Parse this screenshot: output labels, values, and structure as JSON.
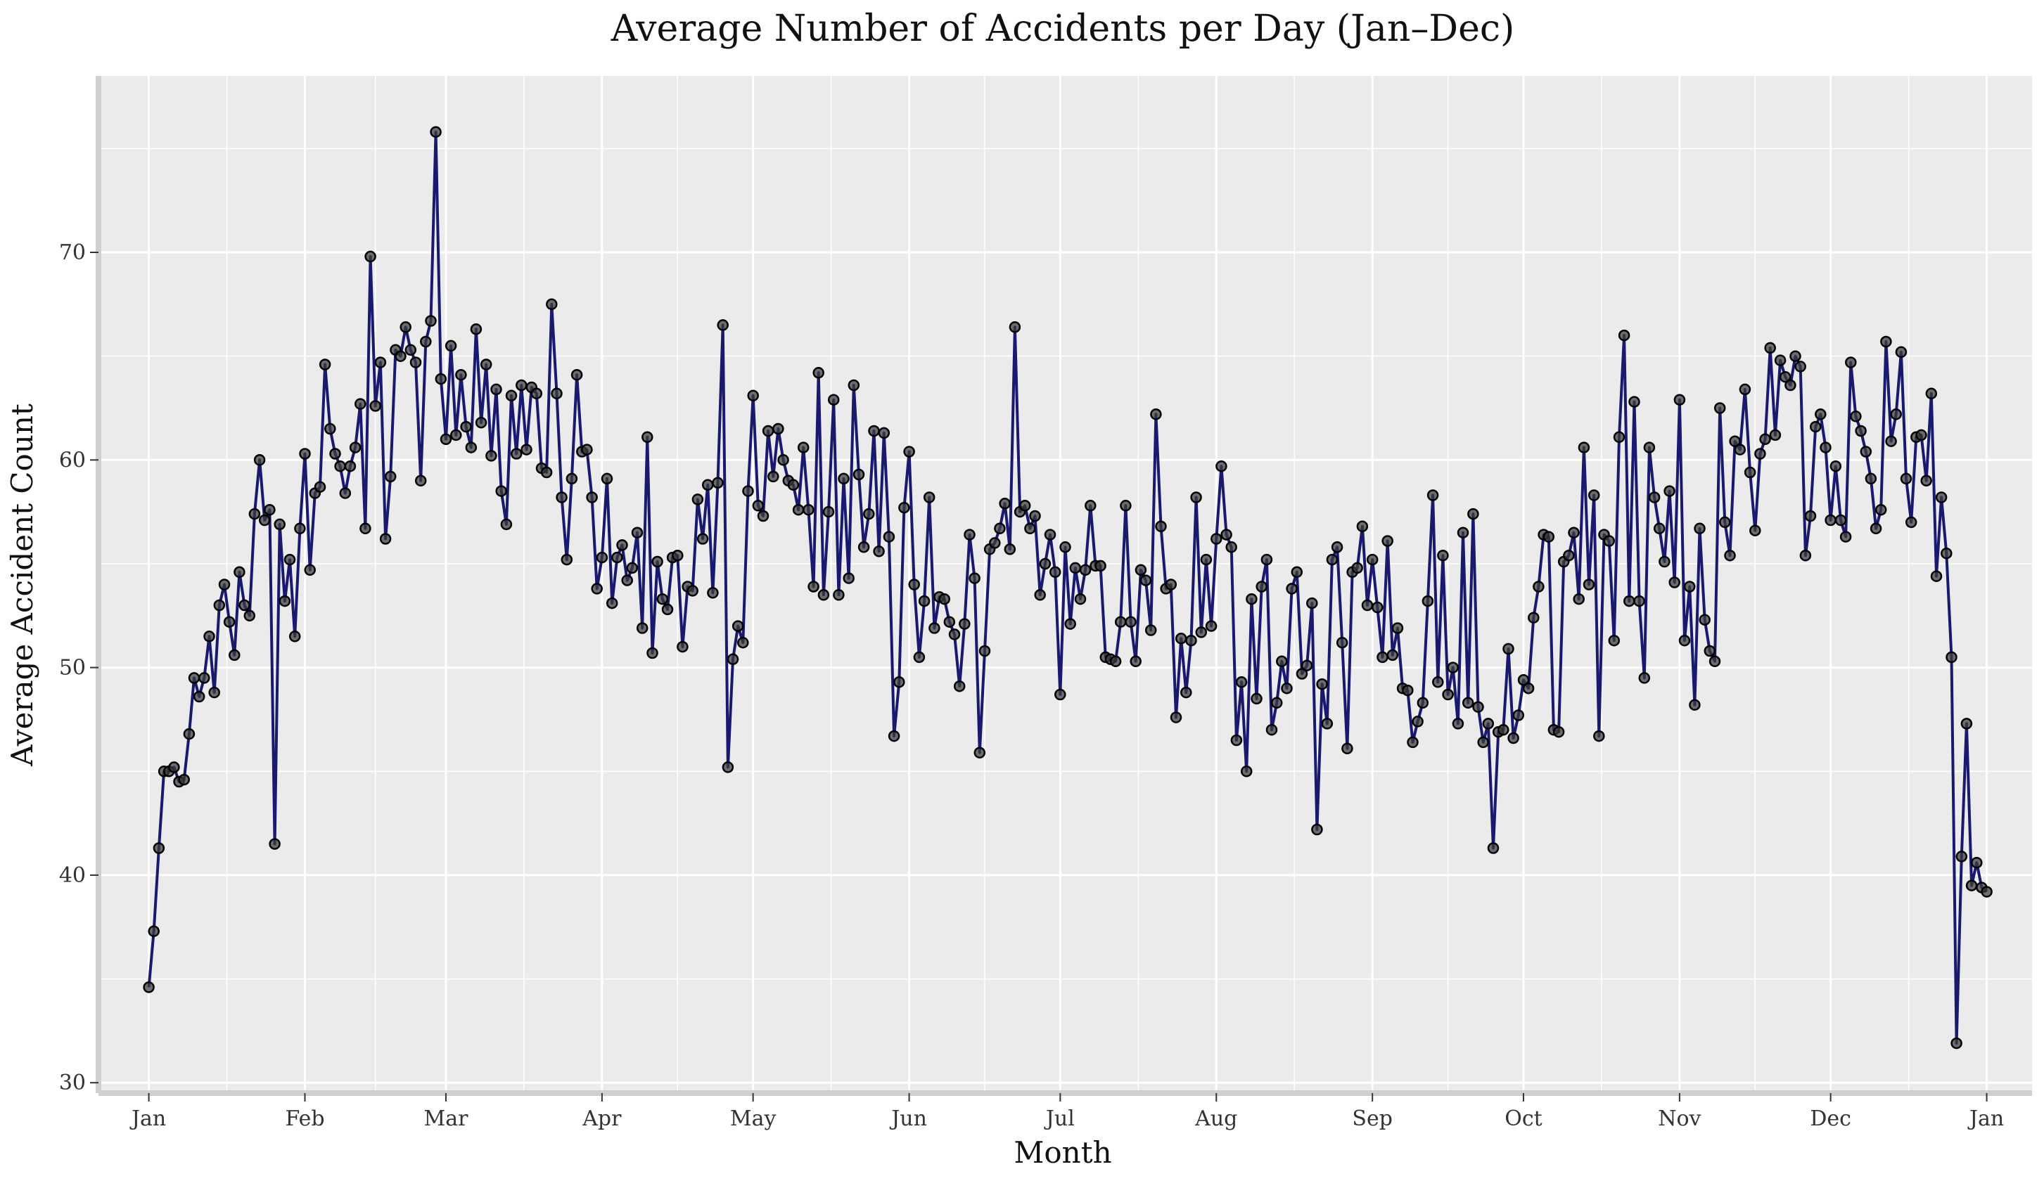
{
  "chart_data": {
    "type": "line",
    "title": "Average Number of Accidents per Day (Jan–Dec)",
    "xlabel": "Month",
    "ylabel": "Average Accident Count",
    "x_tick_labels": [
      "Jan",
      "Feb",
      "Mar",
      "Apr",
      "May",
      "Jun",
      "Jul",
      "Aug",
      "Sep",
      "Oct",
      "Nov",
      "Dec",
      "Jan"
    ],
    "y_ticks": [
      30,
      40,
      50,
      60,
      70
    ],
    "ylim": [
      29.5,
      78.5
    ],
    "xlim_day_of_year": [
      -10,
      374
    ],
    "grid": true,
    "legend": "none",
    "colors": {
      "line": "#191970",
      "marker": "#3d3d3d",
      "panel": "#ebebeb",
      "grid": "#ffffff",
      "axis": "#cfcfcf"
    },
    "series": [
      {
        "values": [
          34.6,
          37.3,
          41.3,
          45.0,
          45.0,
          45.2,
          44.5,
          44.6,
          46.8,
          49.5,
          48.6,
          49.5,
          51.5,
          48.8,
          53.0,
          54.0,
          52.2,
          50.6,
          54.6,
          53.0,
          52.5,
          57.4,
          60.0,
          57.1,
          57.6,
          41.5,
          56.9,
          53.2,
          55.2,
          51.5,
          56.7,
          60.3,
          54.7,
          58.4,
          58.7,
          64.6,
          61.5,
          60.3,
          59.7,
          58.4,
          59.7,
          60.6,
          62.7,
          56.7,
          69.8,
          62.6,
          64.7,
          56.2,
          59.2,
          65.3,
          65.0,
          66.4,
          65.3,
          64.7,
          59.0,
          65.7,
          66.7,
          75.8,
          63.9,
          61.0,
          65.5,
          61.2,
          64.1,
          61.6,
          60.6,
          66.3,
          61.8,
          64.6,
          60.2,
          63.4,
          58.5,
          56.9,
          63.1,
          60.3,
          63.6,
          60.5,
          63.5,
          63.2,
          59.6,
          59.4,
          67.5,
          63.2,
          58.2,
          55.2,
          59.1,
          64.1,
          60.4,
          60.5,
          58.2,
          53.8,
          55.3,
          59.1,
          53.1,
          55.3,
          55.9,
          54.2,
          54.8,
          56.5,
          51.9,
          61.1,
          50.7,
          55.1,
          53.3,
          52.8,
          55.3,
          55.4,
          51.0,
          53.9,
          53.7,
          58.1,
          56.2,
          58.8,
          53.6,
          58.9,
          66.5,
          45.2,
          50.4,
          52.0,
          51.2,
          58.5,
          63.1,
          57.8,
          57.3,
          61.4,
          59.2,
          61.5,
          60.0,
          59.0,
          58.8,
          57.6,
          60.6,
          57.6,
          53.9,
          64.2,
          53.5,
          57.5,
          62.9,
          53.5,
          59.1,
          54.3,
          63.6,
          59.3,
          55.8,
          57.4,
          61.4,
          55.6,
          61.3,
          56.3,
          46.7,
          49.3,
          57.7,
          60.4,
          54.0,
          50.5,
          53.2,
          58.2,
          51.9,
          53.4,
          53.3,
          52.2,
          51.6,
          49.1,
          52.1,
          56.4,
          54.3,
          45.9,
          50.8,
          55.7,
          56.0,
          56.7,
          57.9,
          55.7,
          66.4,
          57.5,
          57.8,
          56.7,
          57.3,
          53.5,
          55.0,
          56.4,
          54.6,
          48.7,
          55.8,
          52.1,
          54.8,
          53.3,
          54.7,
          57.8,
          54.9,
          54.9,
          50.5,
          50.4,
          50.3,
          52.2,
          57.8,
          52.2,
          50.3,
          54.7,
          54.2,
          51.8,
          62.2,
          56.8,
          53.8,
          54.0,
          47.6,
          51.4,
          48.8,
          51.3,
          58.2,
          51.7,
          55.2,
          52.0,
          56.2,
          59.7,
          56.4,
          55.8,
          46.5,
          49.3,
          45.0,
          53.3,
          48.5,
          53.9,
          55.2,
          47.0,
          48.3,
          50.3,
          49.0,
          53.8,
          54.6,
          49.7,
          50.1,
          53.1,
          42.2,
          49.2,
          47.3,
          55.2,
          55.8,
          51.2,
          46.1,
          54.6,
          54.8,
          56.8,
          53.0,
          55.2,
          52.9,
          50.5,
          56.1,
          50.6,
          51.9,
          49.0,
          48.9,
          46.4,
          47.4,
          48.3,
          53.2,
          58.3,
          49.3,
          55.4,
          48.7,
          50.0,
          47.3,
          56.5,
          48.3,
          57.4,
          48.1,
          46.4,
          47.3,
          41.3,
          46.9,
          47.0,
          50.9,
          46.6,
          47.7,
          49.4,
          49.0,
          52.4,
          53.9,
          56.4,
          56.3,
          47.0,
          46.9,
          55.1,
          55.4,
          56.5,
          53.3,
          60.6,
          54.0,
          58.3,
          46.7,
          56.4,
          56.1,
          51.3,
          61.1,
          66.0,
          53.2,
          62.8,
          53.2,
          49.5,
          60.6,
          58.2,
          56.7,
          55.1,
          58.5,
          54.1,
          62.9,
          51.3,
          53.9,
          48.2,
          56.7,
          52.3,
          50.8,
          50.3,
          62.5,
          57.0,
          55.4,
          60.9,
          60.5,
          63.4,
          59.4,
          56.6,
          60.3,
          61.0,
          65.4,
          61.2,
          64.8,
          64.0,
          63.6,
          65.0,
          64.5,
          55.4,
          57.3,
          61.6,
          62.2,
          60.6,
          57.1,
          59.7,
          57.1,
          56.3,
          64.7,
          62.1,
          61.4,
          60.4,
          59.1,
          56.7,
          57.6,
          65.7,
          60.9,
          62.2,
          65.2,
          59.1,
          57.0,
          61.1,
          61.2,
          59.0,
          63.2,
          54.4,
          58.2,
          55.5,
          50.5,
          31.9,
          40.9,
          47.3,
          39.5,
          40.6,
          39.4,
          39.2
        ]
      }
    ]
  }
}
